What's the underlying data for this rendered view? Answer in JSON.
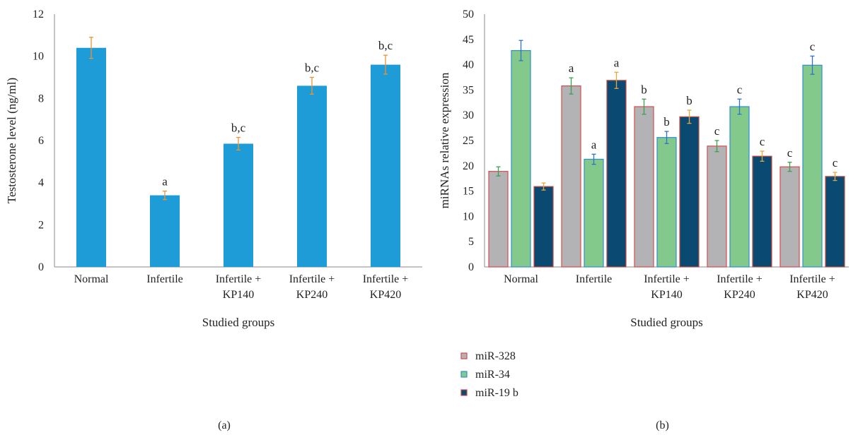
{
  "chart_data": [
    {
      "type": "bar",
      "panel_label": "(a)",
      "title": "",
      "xlabel": "Studied groups",
      "ylabel": "Testosterone level (ng/ml)",
      "ylim": [
        0,
        12
      ],
      "yticks": [
        0,
        2,
        4,
        6,
        8,
        10,
        12
      ],
      "categories": [
        [
          "Normal"
        ],
        [
          "Infertile"
        ],
        [
          "Infertile +",
          "KP140"
        ],
        [
          "Infertile +",
          "KP240"
        ],
        [
          "Infertile +",
          "KP420"
        ]
      ],
      "series": [
        {
          "values": [
            10.4,
            3.4,
            5.85,
            8.6,
            9.6
          ],
          "errors": [
            0.5,
            0.2,
            0.3,
            0.4,
            0.45
          ],
          "color": "#1e9cd7",
          "error_color": "#e8943a",
          "annotations": [
            "",
            "a",
            "b,c",
            "b,c",
            "b,c"
          ]
        }
      ],
      "grid": false,
      "legend": "none"
    },
    {
      "type": "bar",
      "panel_label": "(b)",
      "title": "",
      "xlabel": "Studied groups",
      "ylabel": "miRNAs relative expression",
      "ylim": [
        0,
        50
      ],
      "yticks": [
        0,
        5,
        10,
        15,
        20,
        25,
        30,
        35,
        40,
        45,
        50
      ],
      "categories": [
        [
          "Normal"
        ],
        [
          "Infertile"
        ],
        [
          "Infertile +",
          "KP140"
        ],
        [
          "Infertile +",
          "KP240"
        ],
        [
          "Infertile +",
          "KP420"
        ]
      ],
      "series": [
        {
          "name": "miR-328",
          "values": [
            18.9,
            35.8,
            31.7,
            23.9,
            19.8
          ],
          "errors": [
            0.9,
            1.6,
            1.5,
            1.1,
            0.9
          ],
          "color": "#b3b3b6",
          "border": "#d84b4b",
          "error_color": "#3aa14a",
          "annotations": [
            "",
            "a",
            "b",
            "c",
            "c"
          ]
        },
        {
          "name": "miR-34",
          "values": [
            42.8,
            21.3,
            25.6,
            31.7,
            39.9
          ],
          "errors": [
            2.0,
            1.0,
            1.2,
            1.5,
            1.8
          ],
          "color": "#82c98b",
          "border": "#2f8fd0",
          "error_color": "#2f73c8",
          "annotations": [
            "",
            "a",
            "b",
            "c",
            "c"
          ]
        },
        {
          "name": "miR-19 b",
          "values": [
            15.9,
            36.9,
            29.7,
            21.9,
            17.9
          ],
          "errors": [
            0.7,
            1.6,
            1.3,
            1.0,
            0.8
          ],
          "color": "#0a4a72",
          "border": "#c84a3c",
          "error_color": "#e8a53a",
          "annotations": [
            "",
            "a",
            "b",
            "c",
            "c"
          ]
        }
      ],
      "grid": false,
      "legend": "bottom-left"
    }
  ]
}
